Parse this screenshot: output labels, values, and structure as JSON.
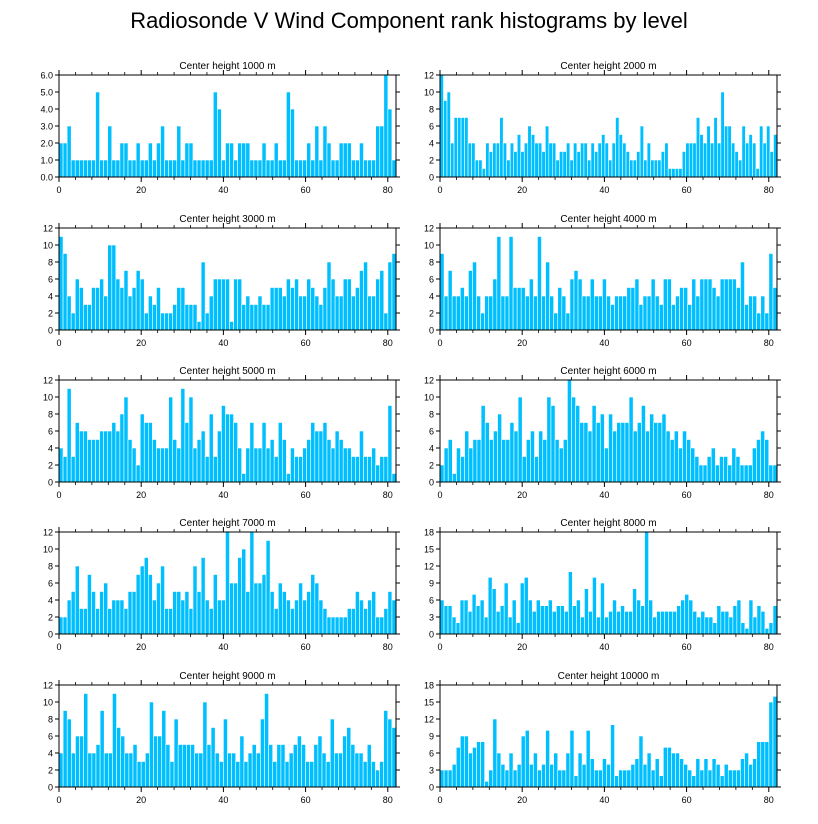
{
  "title": "Radiosonde V Wind Component rank histograms by level",
  "colors": {
    "bar": "#00bfff",
    "bar_edge": "#ffffff",
    "axis": "#000000",
    "background": "#ffffff"
  },
  "chart_data": [
    {
      "type": "bar",
      "title": "Center height 1000 m",
      "xlim": [
        0,
        82
      ],
      "ylim": [
        0,
        6
      ],
      "yticks": [
        0,
        1,
        2,
        3,
        4,
        5,
        6
      ],
      "ytick_format": "0.0",
      "xticks": [
        0,
        20,
        40,
        60,
        80
      ],
      "xlabel": "",
      "ylabel": "",
      "values": [
        2,
        2,
        3,
        1,
        1,
        1,
        1,
        1,
        1,
        5,
        1,
        1,
        3,
        1,
        1,
        2,
        2,
        1,
        1,
        2,
        1,
        1,
        2,
        1,
        2,
        3,
        1,
        1,
        1,
        3,
        1,
        2,
        2,
        1,
        1,
        1,
        1,
        1,
        5,
        4,
        1,
        2,
        2,
        1,
        2,
        2,
        2,
        1,
        1,
        1,
        2,
        1,
        1,
        2,
        1,
        1,
        5,
        4,
        1,
        1,
        1,
        2,
        1,
        3,
        1,
        3,
        2,
        1,
        1,
        2,
        2,
        2,
        1,
        1,
        2,
        1,
        1,
        1,
        3,
        3,
        6,
        4,
        1
      ]
    },
    {
      "type": "bar",
      "title": "Center height 2000 m",
      "xlim": [
        0,
        82
      ],
      "ylim": [
        0,
        12
      ],
      "yticks": [
        0,
        2,
        4,
        6,
        8,
        10,
        12
      ],
      "ytick_format": "0",
      "xticks": [
        0,
        20,
        40,
        60,
        80
      ],
      "xlabel": "",
      "ylabel": "",
      "values": [
        12,
        9,
        10,
        4,
        7,
        7,
        7,
        7,
        4,
        4,
        2,
        2,
        1,
        4,
        3,
        4,
        4,
        7,
        4,
        2,
        4,
        3,
        5,
        3,
        4,
        6,
        5,
        4,
        4,
        3,
        6,
        4,
        4,
        2,
        3,
        3,
        4,
        2,
        4,
        3,
        4,
        4,
        2,
        4,
        3,
        4,
        5,
        4,
        2,
        4,
        7,
        5,
        4,
        3,
        2,
        2,
        3,
        6,
        2,
        4,
        2,
        2,
        2,
        3,
        4,
        1,
        1,
        1,
        1,
        3,
        4,
        4,
        4,
        7,
        5,
        4,
        6,
        4,
        7,
        4,
        10,
        6,
        6,
        4,
        3,
        2,
        6,
        4,
        5,
        4,
        1,
        6,
        4,
        6,
        3,
        5
      ]
    },
    {
      "type": "bar",
      "title": "Center height 3000 m",
      "xlim": [
        0,
        82
      ],
      "ylim": [
        0,
        12
      ],
      "yticks": [
        0,
        2,
        4,
        6,
        8,
        10,
        12
      ],
      "ytick_format": "0",
      "xticks": [
        0,
        20,
        40,
        60,
        80
      ],
      "xlabel": "",
      "ylabel": "",
      "values": [
        11,
        9,
        4,
        2,
        6,
        5,
        3,
        3,
        5,
        5,
        6,
        4,
        10,
        10,
        6,
        5,
        7,
        4,
        5,
        7,
        6,
        2,
        4,
        3,
        5,
        2,
        2,
        2,
        3,
        5,
        5,
        3,
        3,
        3,
        1,
        8,
        2,
        4,
        6,
        6,
        6,
        6,
        1,
        6,
        6,
        3,
        4,
        3,
        3,
        4,
        3,
        3,
        5,
        5,
        5,
        4,
        6,
        5,
        6,
        4,
        4,
        6,
        5,
        4,
        3,
        5,
        8,
        6,
        4,
        4,
        6,
        6,
        4,
        5,
        7,
        8,
        4,
        4,
        6,
        7,
        2,
        8,
        9
      ]
    },
    {
      "type": "bar",
      "title": "Center height 4000 m",
      "xlim": [
        0,
        82
      ],
      "ylim": [
        0,
        12
      ],
      "yticks": [
        0,
        2,
        4,
        6,
        8,
        10,
        12
      ],
      "ytick_format": "0",
      "xticks": [
        0,
        20,
        40,
        60,
        80
      ],
      "xlabel": "",
      "ylabel": "",
      "values": [
        9,
        4,
        7,
        4,
        4,
        5,
        4,
        7,
        8,
        4,
        2,
        4,
        4,
        6,
        11,
        4,
        4,
        11,
        5,
        5,
        5,
        4,
        6,
        4,
        11,
        4,
        8,
        4,
        2,
        5,
        4,
        2,
        6,
        7,
        6,
        4,
        4,
        6,
        4,
        4,
        6,
        4,
        3,
        4,
        4,
        4,
        5,
        5,
        6,
        3,
        4,
        4,
        6,
        4,
        3,
        6,
        6,
        3,
        4,
        5,
        5,
        3,
        6,
        4,
        6,
        6,
        6,
        5,
        4,
        6,
        6,
        6,
        6,
        5,
        8,
        3,
        4,
        4,
        2,
        4,
        2,
        9,
        5
      ]
    },
    {
      "type": "bar",
      "title": "Center height 5000 m",
      "xlim": [
        0,
        82
      ],
      "ylim": [
        0,
        12
      ],
      "yticks": [
        0,
        2,
        4,
        6,
        8,
        10,
        12
      ],
      "ytick_format": "0",
      "xticks": [
        0,
        20,
        40,
        60,
        80
      ],
      "xlabel": "",
      "ylabel": "",
      "values": [
        4,
        3,
        11,
        3,
        7,
        6,
        6,
        5,
        5,
        5,
        6,
        6,
        6,
        7,
        6,
        8,
        10,
        5,
        4,
        2,
        8,
        7,
        7,
        5,
        4,
        4,
        4,
        10,
        5,
        4,
        11,
        7,
        10,
        4,
        5,
        6,
        3,
        8,
        3,
        6,
        9,
        8,
        8,
        7,
        4,
        1,
        4,
        7,
        4,
        4,
        7,
        4,
        5,
        3,
        7,
        5,
        1,
        4,
        3,
        3,
        4,
        5,
        7,
        6,
        6,
        7,
        5,
        4,
        6,
        5,
        4,
        4,
        3,
        3,
        6,
        3,
        3,
        4,
        2,
        3,
        3,
        9,
        1
      ]
    },
    {
      "type": "bar",
      "title": "Center height 6000 m",
      "xlim": [
        0,
        82
      ],
      "ylim": [
        0,
        12
      ],
      "yticks": [
        0,
        2,
        4,
        6,
        8,
        10,
        12
      ],
      "ytick_format": "0",
      "xticks": [
        0,
        20,
        40,
        60,
        80
      ],
      "xlabel": "",
      "ylabel": "",
      "values": [
        2,
        4,
        5,
        1,
        4,
        3,
        6,
        4,
        5,
        5,
        9,
        7,
        5,
        6,
        8,
        5,
        5,
        7,
        6,
        10,
        3,
        5,
        6,
        3,
        6,
        5,
        10,
        9,
        5,
        4,
        5,
        12,
        10,
        9,
        7,
        7,
        6,
        9,
        7,
        8,
        4,
        8,
        6,
        7,
        7,
        7,
        10,
        6,
        7,
        9,
        6,
        8,
        7,
        7,
        8,
        6,
        5,
        6,
        4,
        6,
        5,
        4,
        3,
        2,
        2,
        3,
        4,
        2,
        3,
        3,
        2,
        4,
        3,
        2,
        2,
        2,
        4,
        5,
        6,
        5,
        2,
        2
      ]
    },
    {
      "type": "bar",
      "title": "Center height 7000 m",
      "xlim": [
        0,
        82
      ],
      "ylim": [
        0,
        12
      ],
      "yticks": [
        0,
        2,
        4,
        6,
        8,
        10,
        12
      ],
      "ytick_format": "0",
      "xticks": [
        0,
        20,
        40,
        60,
        80
      ],
      "xlabel": "",
      "ylabel": "",
      "values": [
        2,
        2,
        4,
        5,
        8,
        3,
        3,
        7,
        5,
        3,
        5,
        6,
        3,
        4,
        4,
        4,
        3,
        5,
        5,
        7,
        8,
        9,
        7,
        4,
        6,
        8,
        3,
        3,
        5,
        5,
        4,
        5,
        3,
        8,
        5,
        9,
        4,
        3,
        7,
        4,
        4,
        12,
        6,
        6,
        9,
        10,
        5,
        12,
        6,
        6,
        7,
        11,
        5,
        3,
        6,
        5,
        4,
        3,
        4,
        6,
        4,
        5,
        7,
        6,
        4,
        3,
        2,
        2,
        2,
        2,
        2,
        3,
        3,
        5,
        4,
        3,
        4,
        5,
        2,
        2,
        3,
        5,
        4
      ]
    },
    {
      "type": "bar",
      "title": "Center height 8000 m",
      "xlim": [
        0,
        82
      ],
      "ylim": [
        0,
        18
      ],
      "yticks": [
        0,
        3,
        6,
        9,
        12,
        15,
        18
      ],
      "ytick_format": "0",
      "xticks": [
        0,
        20,
        40,
        60,
        80
      ],
      "xlabel": "",
      "ylabel": "",
      "values": [
        6,
        5,
        5,
        3,
        2,
        6,
        6,
        4,
        7,
        5,
        6,
        3,
        10,
        8,
        4,
        5,
        9,
        3,
        6,
        2,
        9,
        10,
        6,
        4,
        6,
        5,
        5,
        6,
        4,
        5,
        5,
        4,
        11,
        5,
        6,
        3,
        8,
        4,
        10,
        3,
        9,
        3,
        4,
        6,
        4,
        5,
        4,
        4,
        8,
        6,
        5,
        18,
        6,
        3,
        4,
        4,
        4,
        4,
        4,
        5,
        6,
        7,
        6,
        4,
        3,
        4,
        3,
        3,
        2,
        5,
        4,
        4,
        3,
        5,
        6,
        2,
        1,
        6,
        3,
        5,
        4,
        1,
        2,
        5
      ]
    },
    {
      "type": "bar",
      "title": "Center height 9000 m",
      "xlim": [
        0,
        82
      ],
      "ylim": [
        0,
        12
      ],
      "yticks": [
        0,
        2,
        4,
        6,
        8,
        10,
        12
      ],
      "ytick_format": "0",
      "xticks": [
        0,
        20,
        40,
        60,
        80
      ],
      "xlabel": "",
      "ylabel": "",
      "values": [
        4,
        9,
        8,
        4,
        6,
        6,
        11,
        4,
        4,
        5,
        9,
        4,
        4,
        11,
        7,
        6,
        4,
        4,
        5,
        3,
        3,
        4,
        10,
        6,
        6,
        9,
        5,
        3,
        8,
        5,
        5,
        5,
        5,
        4,
        4,
        10,
        5,
        7,
        4,
        3,
        8,
        4,
        4,
        3,
        6,
        3,
        4,
        5,
        4,
        8,
        11,
        5,
        3,
        5,
        5,
        3,
        4,
        5,
        6,
        5,
        3,
        3,
        5,
        6,
        4,
        3,
        8,
        4,
        4,
        6,
        7,
        5,
        4,
        4,
        3,
        5,
        3,
        2,
        3,
        9,
        8,
        7
      ]
    },
    {
      "type": "bar",
      "title": "Center height 10000 m",
      "xlim": [
        0,
        82
      ],
      "ylim": [
        0,
        18
      ],
      "yticks": [
        0,
        3,
        6,
        9,
        12,
        15,
        18
      ],
      "ytick_format": "0",
      "xticks": [
        0,
        20,
        40,
        60,
        80
      ],
      "xlabel": "",
      "ylabel": "",
      "values": [
        3,
        3,
        3,
        4,
        7,
        9,
        9,
        6,
        7,
        8,
        8,
        1,
        3,
        12,
        6,
        4,
        3,
        6,
        3,
        4,
        9,
        10,
        4,
        6,
        3,
        4,
        10,
        4,
        6,
        3,
        3,
        6,
        10,
        2,
        6,
        4,
        10,
        5,
        3,
        3,
        5,
        4,
        11,
        2,
        3,
        3,
        3,
        4,
        5,
        9,
        4,
        6,
        3,
        5,
        2,
        7,
        7,
        6,
        6,
        5,
        4,
        3,
        2,
        5,
        3,
        5,
        3,
        5,
        4,
        2,
        4,
        3,
        3,
        3,
        5,
        6,
        4,
        5,
        8,
        8,
        8,
        15,
        16
      ]
    }
  ]
}
